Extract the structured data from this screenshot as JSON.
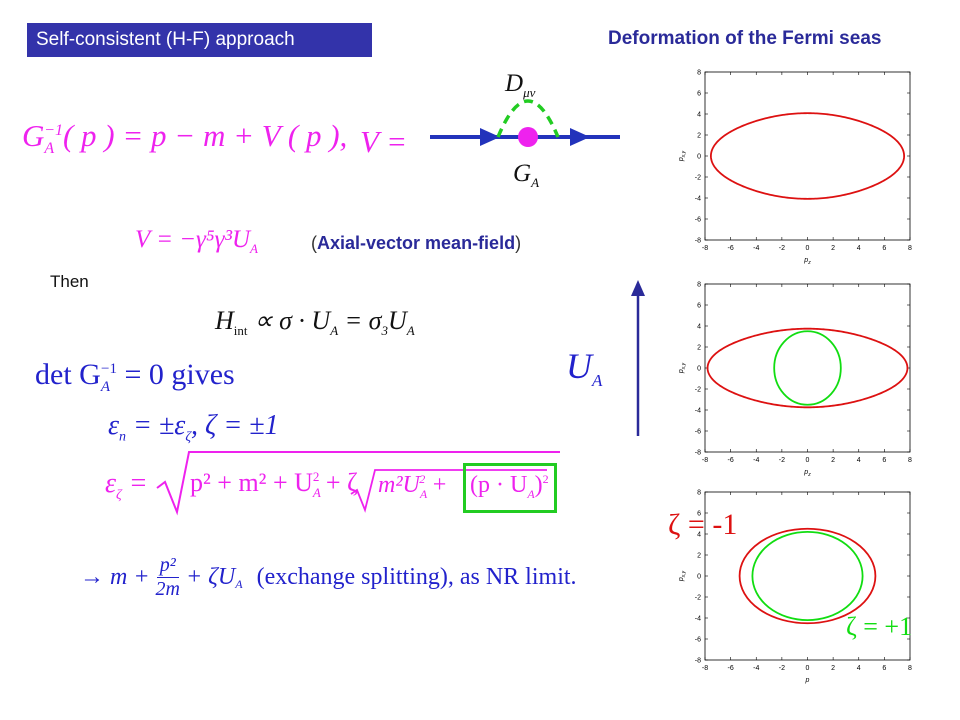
{
  "header": {
    "left_title": "Self-consistent (H-F) approach",
    "right_title": "Deformation of the Fermi seas"
  },
  "equations": {
    "propagator_lhs": "G",
    "propagator_sub": "A",
    "propagator_sup": "−1",
    "propagator_rhs": "( p ) = p − m + V ( p ),",
    "v_equals": "V =",
    "diagram_top_label": "D",
    "diagram_top_sub": "μν",
    "diagram_bottom_label": "G",
    "diagram_bottom_sub": "A",
    "v_def": "V = −γ⁵γ³U",
    "v_def_sub": "A",
    "axial_open": "(",
    "axial_text": "Axial-vector mean-field",
    "axial_close": ")",
    "then": "Then",
    "hint_lhs": "H",
    "hint_sub": "int",
    "hint_rhs": "∝ σ · U",
    "hint_rhs_sub": "A",
    "hint_rhs2": "= σ",
    "hint_rhs2_sub": "3",
    "hint_rhs3": "U",
    "hint_rhs3_sub": "A",
    "det_text": "det G",
    "det_sub": "A",
    "det_sup": "−1",
    "det_rest": "= 0 gives",
    "ua_label": "U",
    "ua_sub": "A",
    "eps_n": "ε",
    "eps_n_sub": "n",
    "eps_n_rest": "= ±ε",
    "eps_n_rest_sub": "ζ",
    "zeta_pm": ",  ζ = ±1",
    "eps_zeta": "ε",
    "eps_zeta_sub": "ζ",
    "eps_eq": "=",
    "sqrt_outer": "p² + m² + U",
    "sqrt_outer_sub": "A",
    "sqrt_outer_sup": "2",
    "sqrt_outer_tail": "+ ζ",
    "sqrt_inner": "m²U",
    "sqrt_inner_sub": "A",
    "sqrt_inner_sup": "2",
    "sqrt_inner_tail": "+",
    "boxed_term": "(p · U",
    "boxed_sub": "A",
    "boxed_close": ")",
    "boxed_sup": "2",
    "nr_arrow": "→ m +",
    "nr_num": "p²",
    "nr_den": "2m",
    "nr_tail": "+ ζU",
    "nr_tail_sub": "A",
    "nr_text": "(exchange splitting), as NR limit."
  },
  "plots": {
    "tick_labels": [
      "-8",
      "-6",
      "-4",
      "-2",
      "0",
      "2",
      "4",
      "6",
      "8"
    ],
    "x_label": "p",
    "x_label_sub": "z",
    "y_label": "p",
    "y_label_sub": "x,y",
    "plot3_x_label": "p",
    "zeta_minus": "ζ = -1",
    "zeta_plus": "ζ = +1"
  },
  "colors": {
    "red": "#dd1111",
    "green": "#11dd11",
    "blue": "#2233bb",
    "magenta": "#ee22ee"
  }
}
